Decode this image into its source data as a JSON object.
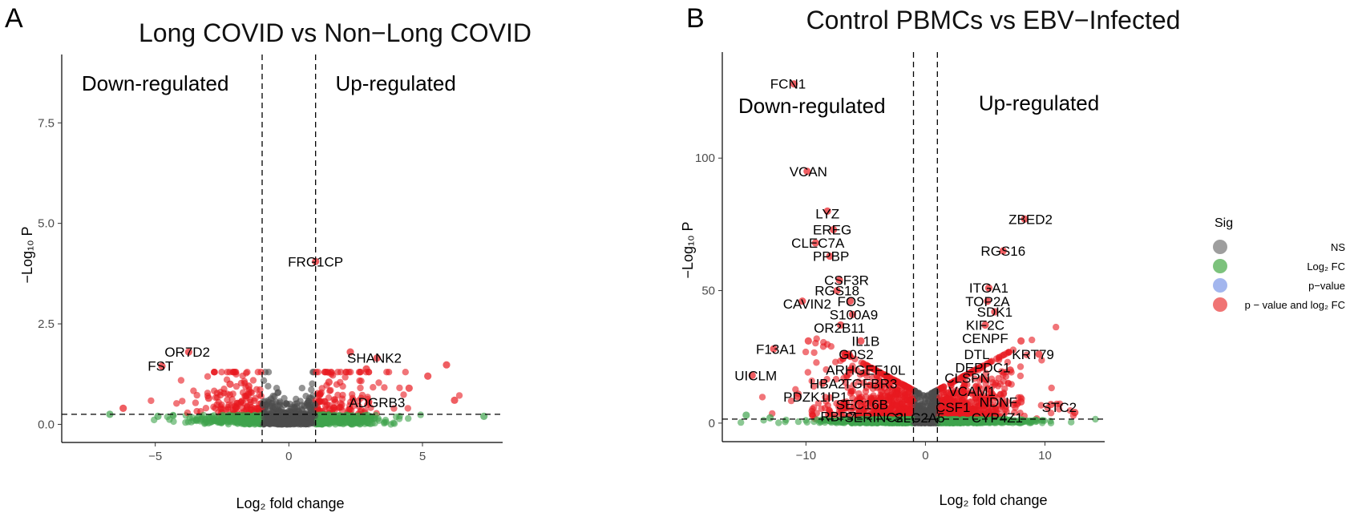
{
  "chart_data": [
    {
      "type": "scatter",
      "panel_label": "A",
      "title": "Long COVID vs Non−Long COVID",
      "xlabel": "Log₂ fold change",
      "ylabel": "−Log₁₀ P",
      "xlim": [
        -8.5,
        8.0
      ],
      "ylim": [
        -0.45,
        9.2
      ],
      "xticks": [
        -5,
        0,
        5
      ],
      "xtick_labels": [
        "−5",
        "0",
        "5"
      ],
      "yticks": [
        0,
        2.5,
        5,
        7.5
      ],
      "ytick_labels": [
        "0.0",
        "2.5",
        "5.0",
        "7.5"
      ],
      "fc_cutoffs": [
        -1,
        1
      ],
      "p_cutoff": 0.25,
      "region_labels": {
        "down": {
          "text": "Down-regulated",
          "x": -5,
          "y": 8.3
        },
        "up": {
          "text": "Up-regulated",
          "x": 4.0,
          "y": 8.3
        }
      },
      "labeled_genes": [
        {
          "name": "FRG1CP",
          "x": 1.0,
          "y": 4.05
        },
        {
          "name": "OR7D2",
          "x": -3.8,
          "y": 1.8
        },
        {
          "name": "FST",
          "x": -4.8,
          "y": 1.45
        },
        {
          "name": "SHANK2",
          "x": 3.2,
          "y": 1.65
        },
        {
          "name": "ADGRB3",
          "x": 3.3,
          "y": 0.55
        }
      ],
      "highlight_points": [
        {
          "x": -4.75,
          "y": 1.45,
          "sig": "both"
        },
        {
          "x": -3.75,
          "y": 1.8,
          "sig": "both"
        },
        {
          "x": 1.0,
          "y": 4.05,
          "sig": "both"
        },
        {
          "x": 2.3,
          "y": 1.8,
          "sig": "both"
        },
        {
          "x": 3.3,
          "y": 1.65,
          "sig": "both"
        },
        {
          "x": 2.9,
          "y": 1.38,
          "sig": "both"
        },
        {
          "x": 5.9,
          "y": 1.48,
          "sig": "both"
        },
        {
          "x": 5.2,
          "y": 1.2,
          "sig": "both"
        },
        {
          "x": 6.2,
          "y": 0.6,
          "sig": "both"
        },
        {
          "x": -2.2,
          "y": 1.0,
          "sig": "both"
        },
        {
          "x": -3.0,
          "y": 0.65,
          "sig": "both"
        },
        {
          "x": -6.2,
          "y": 0.4,
          "sig": "both"
        },
        {
          "x": -6.7,
          "y": 0.25,
          "sig": "log2fc"
        },
        {
          "x": -4.9,
          "y": 0.2,
          "sig": "log2fc"
        },
        {
          "x": 7.3,
          "y": 0.2,
          "sig": "log2fc"
        },
        {
          "x": 1.5,
          "y": 1.05,
          "sig": "both"
        },
        {
          "x": 4.5,
          "y": 0.9,
          "sig": "both"
        },
        {
          "x": -1.5,
          "y": 0.95,
          "sig": "both"
        }
      ],
      "cloud": {
        "fc_sd": 1.6,
        "p_scale": 0.45,
        "n": 900,
        "seed": 7
      }
    },
    {
      "type": "scatter",
      "panel_label": "B",
      "title": "Control PBMCs vs EBV−Infected",
      "xlabel": "Log₂ fold change",
      "ylabel": "−Log₁₀ P",
      "xlim": [
        -17,
        15
      ],
      "ylim": [
        -7,
        140
      ],
      "xticks": [
        -10,
        0,
        10
      ],
      "xtick_labels": [
        "−10",
        "0",
        "10"
      ],
      "yticks": [
        0,
        50,
        100
      ],
      "ytick_labels": [
        "0",
        "50",
        "100"
      ],
      "fc_cutoffs": [
        -1,
        1
      ],
      "p_cutoff": 1.5,
      "region_labels": {
        "down": {
          "text": "Down-regulated",
          "x": -9.5,
          "y": 117
        },
        "up": {
          "text": "Up-regulated",
          "x": 9.5,
          "y": 118
        }
      },
      "labeled_genes": [
        {
          "name": "FCN1",
          "x": -11.5,
          "y": 128
        },
        {
          "name": "VCAN",
          "x": -9.8,
          "y": 95
        },
        {
          "name": "LYZ",
          "x": -8.2,
          "y": 79
        },
        {
          "name": "EREG",
          "x": -7.8,
          "y": 73
        },
        {
          "name": "CLEC7A",
          "x": -9.0,
          "y": 68
        },
        {
          "name": "PPBP",
          "x": -7.9,
          "y": 63
        },
        {
          "name": "CSF3R",
          "x": -6.6,
          "y": 54
        },
        {
          "name": "RGS18",
          "x": -7.4,
          "y": 50
        },
        {
          "name": "FOS",
          "x": -6.2,
          "y": 46
        },
        {
          "name": "CAVIN2",
          "x": -9.9,
          "y": 45
        },
        {
          "name": "S100A9",
          "x": -6.0,
          "y": 41
        },
        {
          "name": "OR2B11",
          "x": -7.2,
          "y": 36
        },
        {
          "name": "IL1B",
          "x": -5.0,
          "y": 31
        },
        {
          "name": "F13A1",
          "x": -12.5,
          "y": 28
        },
        {
          "name": "G0S2",
          "x": -5.8,
          "y": 26
        },
        {
          "name": "UICLM",
          "x": -14.2,
          "y": 18
        },
        {
          "name": "ARHGEF10L",
          "x": -5.0,
          "y": 20
        },
        {
          "name": "TGFBR3",
          "x": -4.6,
          "y": 15
        },
        {
          "name": "HBA2",
          "x": -8.2,
          "y": 15
        },
        {
          "name": "PDZK1IP1",
          "x": -9.2,
          "y": 10
        },
        {
          "name": "SEC16B",
          "x": -5.3,
          "y": 7
        },
        {
          "name": "RBP7",
          "x": -7.3,
          "y": 2.5
        },
        {
          "name": "SERINC2",
          "x": -4.3,
          "y": 2.2
        },
        {
          "name": "SLC2A5",
          "x": -0.5,
          "y": 2.0
        },
        {
          "name": "ZBED2",
          "x": 8.8,
          "y": 77
        },
        {
          "name": "RGS16",
          "x": 6.5,
          "y": 65
        },
        {
          "name": "ITGA1",
          "x": 5.3,
          "y": 51
        },
        {
          "name": "TOP2A",
          "x": 5.2,
          "y": 46
        },
        {
          "name": "SDK1",
          "x": 5.8,
          "y": 42
        },
        {
          "name": "KIF2C",
          "x": 5.0,
          "y": 37
        },
        {
          "name": "CENPF",
          "x": 5.0,
          "y": 32
        },
        {
          "name": "KRT79",
          "x": 9.0,
          "y": 26
        },
        {
          "name": "DTL",
          "x": 4.3,
          "y": 26
        },
        {
          "name": "DEPDC1",
          "x": 4.8,
          "y": 21
        },
        {
          "name": "CLSPN",
          "x": 3.5,
          "y": 17
        },
        {
          "name": "VCAM1",
          "x": 3.9,
          "y": 12
        },
        {
          "name": "NDNF",
          "x": 6.1,
          "y": 8
        },
        {
          "name": "CSF1",
          "x": 2.3,
          "y": 6
        },
        {
          "name": "STC2",
          "x": 11.2,
          "y": 6
        },
        {
          "name": "CYP4Z1",
          "x": 6.0,
          "y": 2
        }
      ],
      "highlight_points": [
        {
          "x": -11.0,
          "y": 128,
          "sig": "both"
        },
        {
          "x": -9.9,
          "y": 95,
          "sig": "both"
        },
        {
          "x": -8.2,
          "y": 80,
          "sig": "both"
        },
        {
          "x": -7.7,
          "y": 73,
          "sig": "both"
        },
        {
          "x": -9.2,
          "y": 68,
          "sig": "both"
        },
        {
          "x": -8.0,
          "y": 63,
          "sig": "both"
        },
        {
          "x": -7.2,
          "y": 54,
          "sig": "both"
        },
        {
          "x": -7.4,
          "y": 50,
          "sig": "both"
        },
        {
          "x": -6.3,
          "y": 46,
          "sig": "both"
        },
        {
          "x": -10.3,
          "y": 46,
          "sig": "both"
        },
        {
          "x": -6.1,
          "y": 41,
          "sig": "both"
        },
        {
          "x": -7.1,
          "y": 37,
          "sig": "both"
        },
        {
          "x": -5.4,
          "y": 31,
          "sig": "both"
        },
        {
          "x": -12.7,
          "y": 28,
          "sig": "both"
        },
        {
          "x": -6.4,
          "y": 26,
          "sig": "both"
        },
        {
          "x": -14.5,
          "y": 18,
          "sig": "both"
        },
        {
          "x": -9.8,
          "y": 31,
          "sig": "both"
        },
        {
          "x": -8.6,
          "y": 15,
          "sig": "both"
        },
        {
          "x": -10.7,
          "y": 10,
          "sig": "both"
        },
        {
          "x": 8.3,
          "y": 77,
          "sig": "both"
        },
        {
          "x": 6.5,
          "y": 65,
          "sig": "both"
        },
        {
          "x": 5.3,
          "y": 51,
          "sig": "both"
        },
        {
          "x": 5.2,
          "y": 46,
          "sig": "both"
        },
        {
          "x": 5.8,
          "y": 42,
          "sig": "both"
        },
        {
          "x": 5.0,
          "y": 37,
          "sig": "both"
        },
        {
          "x": 8.0,
          "y": 31,
          "sig": "both"
        },
        {
          "x": 9.5,
          "y": 26,
          "sig": "both"
        },
        {
          "x": 7.1,
          "y": 20,
          "sig": "both"
        },
        {
          "x": 10.5,
          "y": 7,
          "sig": "both"
        },
        {
          "x": 12.5,
          "y": 4,
          "sig": "both"
        },
        {
          "x": 8.0,
          "y": 8,
          "sig": "both"
        },
        {
          "x": -15.0,
          "y": 3,
          "sig": "log2fc"
        },
        {
          "x": -13.0,
          "y": 2,
          "sig": "log2fc"
        }
      ],
      "cloud": {
        "fc_sd": 3.6,
        "p_scale": 9.0,
        "n": 1800,
        "seed": 13
      }
    }
  ],
  "legend": {
    "title": "Sig",
    "items": [
      {
        "label": "NS",
        "color": "#9e9e9e"
      },
      {
        "label": "Log₂ FC",
        "color": "#7cc27c"
      },
      {
        "label": "p−value",
        "color": "#a3b6ee"
      },
      {
        "label": "p − value and log₂ FC",
        "color": "#f07474"
      }
    ]
  },
  "colors": {
    "ns": "#4d4d4d",
    "log2fc": "#3fa34d",
    "both": "#e8191f",
    "pvalue": "#6d8fe0"
  }
}
